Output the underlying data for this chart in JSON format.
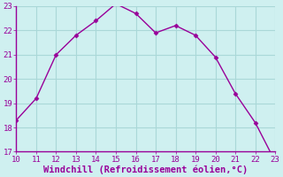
{
  "x": [
    10,
    11,
    12,
    13,
    14,
    15,
    16,
    17,
    18,
    19,
    20,
    21,
    22,
    23
  ],
  "y": [
    18.3,
    19.2,
    21.0,
    21.8,
    22.4,
    23.1,
    22.7,
    21.9,
    22.2,
    21.8,
    20.9,
    19.4,
    18.2,
    16.6
  ],
  "xlim": [
    10,
    23
  ],
  "ylim": [
    17,
    23
  ],
  "xticks": [
    10,
    11,
    12,
    13,
    14,
    15,
    16,
    17,
    18,
    19,
    20,
    21,
    22,
    23
  ],
  "yticks": [
    17,
    18,
    19,
    20,
    21,
    22,
    23
  ],
  "xlabel": "Windchill (Refroidissement éolien,°C)",
  "line_color": "#990099",
  "marker": "D",
  "marker_size": 2.5,
  "background_color": "#cff0f0",
  "grid_color": "#aad8d8",
  "tick_color": "#990099",
  "label_color": "#990099",
  "tick_fontsize": 6.5,
  "xlabel_fontsize": 7.5,
  "spine_color": "#990099"
}
